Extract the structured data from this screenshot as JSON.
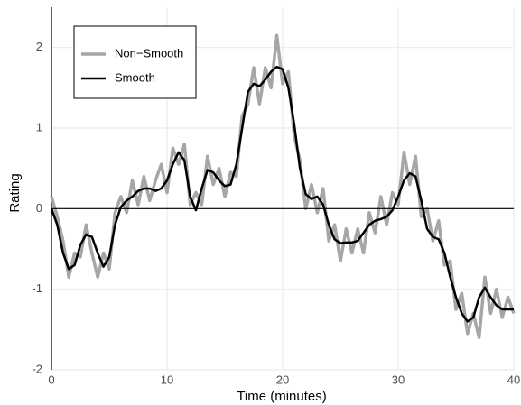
{
  "chart_data": {
    "type": "line",
    "x": [
      0,
      0.5,
      1,
      1.5,
      2,
      2.5,
      3,
      3.5,
      4,
      4.5,
      5,
      5.5,
      6,
      6.5,
      7,
      7.5,
      8,
      8.5,
      9,
      9.5,
      10,
      10.5,
      11,
      11.5,
      12,
      12.5,
      13,
      13.5,
      14,
      14.5,
      15,
      15.5,
      16,
      16.5,
      17,
      17.5,
      18,
      18.5,
      19,
      19.5,
      20,
      20.5,
      21,
      21.5,
      22,
      22.5,
      23,
      23.5,
      24,
      24.5,
      25,
      25.5,
      26,
      26.5,
      27,
      27.5,
      28,
      28.5,
      29,
      29.5,
      30,
      30.5,
      31,
      31.5,
      32,
      32.5,
      33,
      33.5,
      34,
      34.5,
      35,
      35.5,
      36,
      36.5,
      37,
      37.5,
      38,
      38.5,
      39,
      39.5,
      40
    ],
    "series": [
      {
        "name": "Non−Smooth",
        "color": "#a6a6a6",
        "width": 3.5,
        "values": [
          0.15,
          -0.1,
          -0.4,
          -0.85,
          -0.55,
          -0.6,
          -0.2,
          -0.55,
          -0.85,
          -0.55,
          -0.75,
          -0.05,
          0.15,
          -0.05,
          0.35,
          0.05,
          0.4,
          0.1,
          0.35,
          0.55,
          0.2,
          0.75,
          0.55,
          0.8,
          0.05,
          0.2,
          0.05,
          0.65,
          0.3,
          0.5,
          0.15,
          0.45,
          0.4,
          1.15,
          1.3,
          1.75,
          1.3,
          1.75,
          1.5,
          2.15,
          1.55,
          1.7,
          0.9,
          0.6,
          0.0,
          0.3,
          -0.05,
          0.25,
          -0.4,
          -0.2,
          -0.65,
          -0.25,
          -0.55,
          -0.25,
          -0.55,
          -0.05,
          -0.3,
          0.15,
          -0.2,
          0.2,
          0.05,
          0.7,
          0.3,
          0.65,
          -0.1,
          0.0,
          -0.4,
          -0.15,
          -0.7,
          -0.65,
          -1.25,
          -1.05,
          -1.55,
          -1.3,
          -1.6,
          -0.85,
          -1.3,
          -1.0,
          -1.35,
          -1.1,
          -1.3
        ]
      },
      {
        "name": "Smooth",
        "color": "#000000",
        "width": 2.5,
        "values": [
          0.0,
          -0.2,
          -0.55,
          -0.75,
          -0.7,
          -0.45,
          -0.32,
          -0.35,
          -0.55,
          -0.72,
          -0.6,
          -0.2,
          0.02,
          0.1,
          0.15,
          0.22,
          0.25,
          0.25,
          0.22,
          0.25,
          0.35,
          0.55,
          0.7,
          0.6,
          0.15,
          -0.02,
          0.25,
          0.48,
          0.45,
          0.35,
          0.28,
          0.3,
          0.55,
          1.0,
          1.45,
          1.55,
          1.52,
          1.6,
          1.7,
          1.76,
          1.73,
          1.5,
          1.05,
          0.5,
          0.18,
          0.12,
          0.15,
          0.05,
          -0.2,
          -0.38,
          -0.43,
          -0.42,
          -0.42,
          -0.4,
          -0.3,
          -0.2,
          -0.15,
          -0.13,
          -0.1,
          -0.02,
          0.15,
          0.35,
          0.44,
          0.4,
          0.1,
          -0.25,
          -0.35,
          -0.38,
          -0.55,
          -0.85,
          -1.1,
          -1.3,
          -1.4,
          -1.35,
          -1.1,
          -0.98,
          -1.1,
          -1.2,
          -1.25,
          -1.25,
          -1.25
        ]
      }
    ],
    "xlabel": "Time (minutes)",
    "ylabel": "Rating",
    "xlim": [
      0,
      40
    ],
    "xticks": [
      0,
      10,
      20,
      30,
      40
    ],
    "ylim": [
      -2,
      2.5
    ],
    "yticks": [
      -2,
      -1,
      0,
      1,
      2
    ],
    "hline": 0,
    "grid": true,
    "legend": "top-left"
  }
}
